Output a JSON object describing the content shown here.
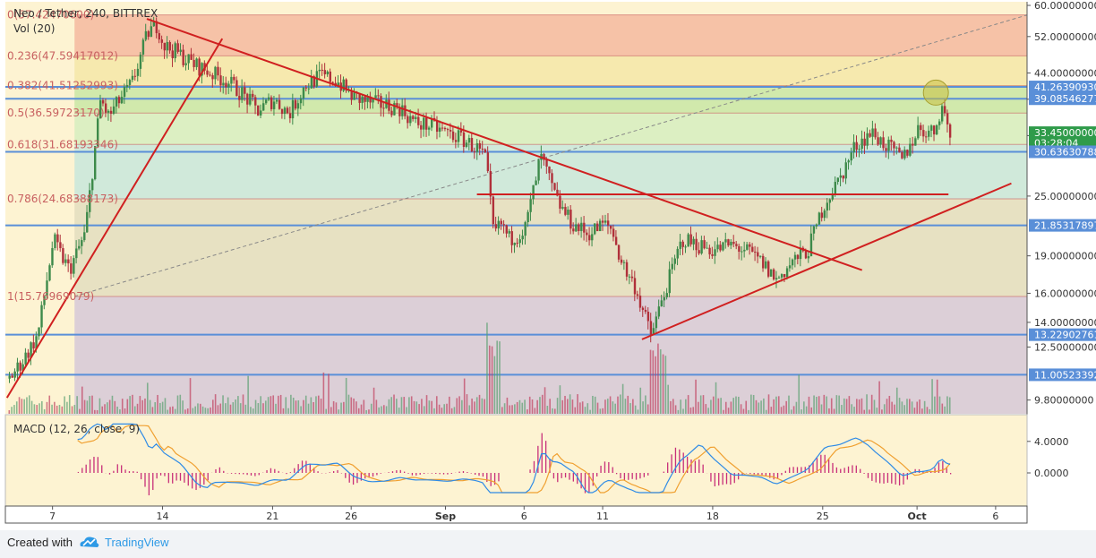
{
  "header": {
    "symbol_title": "Neo / Tether, 240, BITTREX",
    "vol_label": "Vol (20)"
  },
  "macd_label": "MACD (12, 26, close, 9)",
  "colors": {
    "pane_bg": "#fdf3d2",
    "trend_red": "#d02020",
    "level_blue": "#5a8fd8",
    "candle_up": "#3d8a4a",
    "candle_down": "#b0303a",
    "macd_line": "#2f8be6",
    "signal_line": "#f0a030",
    "hist": "#c8307a",
    "fib_line": "#c86060",
    "marker": "#c8c040"
  },
  "fib_levels": [
    {
      "label": "0(57.42470600)",
      "value": 57.424706
    },
    {
      "label": "0.236(47.59417012)",
      "value": 47.59417012
    },
    {
      "label": "0.382(41.51252993)",
      "value": 41.51252993
    },
    {
      "label": "0.5(36.59723170)",
      "value": 36.5972317
    },
    {
      "label": "0.618(31.68193346)",
      "value": 31.68193346
    },
    {
      "label": "0.786(24.68388173)",
      "value": 24.68388173
    },
    {
      "label": "1(15.76969079)",
      "value": 15.76969079
    }
  ],
  "price_axis": [
    "60.00000000",
    "52.00000000",
    "44.00000000",
    "39.00000000",
    "33.00000000",
    "25.00000000",
    "19.00000000",
    "16.00000000",
    "14.00000000",
    "12.50000000",
    "9.80000000"
  ],
  "price_tags": [
    {
      "label": "41.26390930",
      "value": 41.2639093
    },
    {
      "label": "39.08546277",
      "value": 39.08546277
    },
    {
      "label": "33.45000000",
      "value": 33.45
    },
    {
      "label": "03:28:04",
      "value": 31.95
    },
    {
      "label": "30.63630788",
      "value": 30.63630788
    },
    {
      "label": "21.85317897",
      "value": 21.85317897
    },
    {
      "label": "13.22902761",
      "value": 13.22902761
    },
    {
      "label": "11.00523392",
      "value": 11.00523392
    }
  ],
  "macd_axis": [
    "4.0000",
    "0.0000"
  ],
  "x_axis": [
    {
      "label": "7",
      "day": 7
    },
    {
      "label": "14",
      "day": 14
    },
    {
      "label": "21",
      "day": 21
    },
    {
      "label": "26",
      "day": 26
    },
    {
      "label": "Sep",
      "day": 32
    },
    {
      "label": "6",
      "day": 37
    },
    {
      "label": "11",
      "day": 42
    },
    {
      "label": "18",
      "day": 49
    },
    {
      "label": "25",
      "day": 56
    },
    {
      "label": "Oct",
      "day": 62
    },
    {
      "label": "6",
      "day": 67
    }
  ],
  "chart_data": {
    "type": "line",
    "title": "Neo / Tether, 240, BITTREX",
    "y_scale": "log",
    "ylim": [
      9.2,
      61
    ],
    "x_unit": "day (Aug 1 = 1, Sep 1 = 32, Oct 1 = 62)",
    "xlim": [
      4,
      69
    ],
    "series": [
      {
        "x": [
          4.0,
          5.0,
          6.0,
          7.0,
          7.3,
          8.0,
          9.0,
          10.0,
          10.5,
          11.0,
          12.0,
          13.0,
          13.6,
          14.0,
          15.0,
          15.8,
          17.0,
          18.0,
          19.0,
          20.0,
          21.0,
          22.0,
          23.0,
          24.0,
          25.0,
          26.0,
          27.0,
          28.0,
          29.0,
          30.0,
          31.0,
          32.0,
          33.0,
          34.0,
          34.5,
          35.0,
          35.5,
          36.0,
          37.0,
          38.0,
          39.0,
          40.0,
          41.0,
          42.0,
          42.5,
          43.0,
          43.5,
          44.0,
          45.0,
          46.0,
          47.0,
          48.0,
          49.0,
          50.0,
          51.0,
          52.0,
          53.0,
          54.0,
          55.0,
          56.0,
          57.0,
          58.0,
          59.0,
          60.0,
          61.0,
          62.0,
          63.0,
          63.5,
          64.0
        ],
        "values": [
          10.6,
          11.7,
          13.2,
          20.5,
          19.5,
          17.8,
          21.0,
          39.0,
          36.0,
          38.0,
          42.0,
          53.0,
          55.0,
          50.0,
          48.0,
          46.0,
          44.0,
          42.5,
          40.0,
          37.0,
          39.0,
          36.5,
          41.5,
          43.5,
          42.5,
          39.5,
          38.5,
          38.0,
          37.5,
          35.0,
          34.5,
          33.5,
          32.5,
          31.0,
          29.5,
          21.0,
          22.0,
          20.5,
          21.5,
          30.0,
          24.5,
          22.0,
          21.0,
          22.0,
          21.5,
          19.0,
          17.5,
          16.5,
          13.2,
          16.5,
          20.5,
          20.0,
          19.5,
          20.0,
          19.5,
          18.5,
          17.0,
          18.5,
          19.5,
          24.0,
          27.0,
          31.5,
          33.5,
          31.5,
          29.5,
          34.0,
          33.5,
          38.0,
          33.45
        ]
      }
    ]
  }
}
